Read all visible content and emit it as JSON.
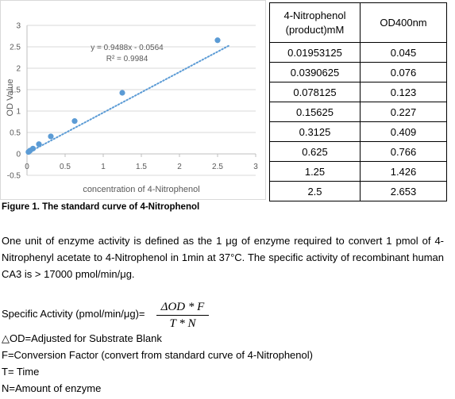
{
  "chart_data": {
    "type": "scatter",
    "x": [
      0.01953125,
      0.0390625,
      0.078125,
      0.15625,
      0.3125,
      0.625,
      1.25,
      2.5
    ],
    "y": [
      0.045,
      0.076,
      0.123,
      0.227,
      0.409,
      0.766,
      1.426,
      2.653
    ],
    "plot_x": [
      0.01953125,
      0.0390625,
      0.078125,
      0.15625,
      0.3125,
      0.625,
      1.25,
      2.5
    ],
    "plot_y": [
      0.045,
      0.076,
      0.123,
      0.227,
      0.409,
      0.766,
      1.426,
      2.653
    ],
    "xlabel": "concentration of 4-Nitrophenol",
    "ylabel": "OD Value",
    "xlim": [
      0,
      3
    ],
    "ylim": [
      -0.5,
      3
    ],
    "xticks": [
      "0",
      "0.5",
      "1",
      "1.5",
      "2",
      "2.5",
      "3"
    ],
    "yticks": [
      "-0.5",
      "0",
      "0.5",
      "1",
      "1.5",
      "2",
      "2.5",
      "3"
    ],
    "grid": "horizontal",
    "trendline": {
      "slope": 0.9488,
      "intercept": -0.0564,
      "style": "dotted"
    },
    "equation": "y = 0.9488x - 0.0564",
    "r_squared": "R² = 0.9984",
    "point_color": "#5b9bd5",
    "line_color": "#5b9bd5"
  },
  "table": {
    "headers": [
      "4-Nitrophenol",
      "(product)mM",
      "OD400nm"
    ],
    "rows": [
      [
        "0.01953125",
        "0.045"
      ],
      [
        "0.0390625",
        "0.076"
      ],
      [
        "0.078125",
        "0.123"
      ],
      [
        "0.15625",
        "0.227"
      ],
      [
        "0.3125",
        "0.409"
      ],
      [
        "0.625",
        "0.766"
      ],
      [
        "1.25",
        "1.426"
      ],
      [
        "2.5",
        "2.653"
      ]
    ]
  },
  "caption": "Figure 1. The standard curve of 4-Nitrophenol",
  "paragraph": "One unit of enzyme activity is defined as the 1 μg of enzyme required to convert 1 pmol of 4-Nitrophenyl acetate to 4-Nitrophenol in 1min at 37°C. The specific activity of recombinant human CA3 is > 17000 pmol/min/μg.",
  "formula": {
    "label": "Specific Activity (pmol/min/μg)=",
    "numerator": "ΔOD * F",
    "denominator": "T * N"
  },
  "definitions": [
    "△OD=Adjusted for Substrate Blank",
    "F=Conversion Factor (convert from standard curve of 4-Nitrophenol)",
    "T= Time",
    "N=Amount of enzyme"
  ]
}
